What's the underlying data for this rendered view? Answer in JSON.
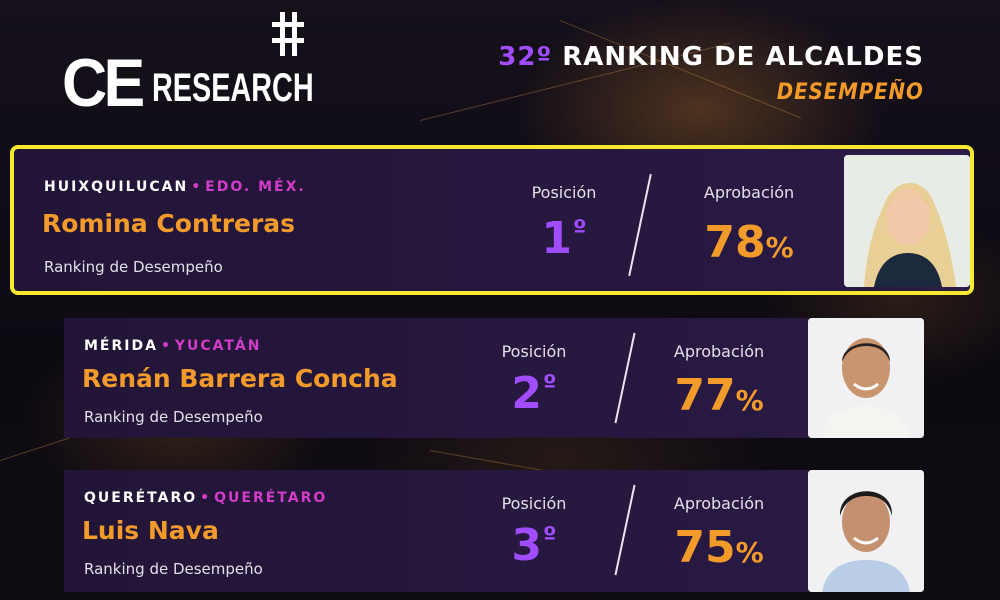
{
  "brand": {
    "logo_ce": "CE",
    "logo_research": "RESEARCH"
  },
  "header": {
    "number": "32º",
    "title": "RANKING DE ALCALDES",
    "subtitle": "DESEMPEÑO"
  },
  "labels": {
    "position": "Posición",
    "approval": "Aprobación",
    "ranking": "Ranking de Desempeño"
  },
  "entries": [
    {
      "city": "HUIXQUILUCAN",
      "state": "EDO. MÉX.",
      "name": "Romina Contreras",
      "position": "1",
      "position_suffix": "º",
      "approval": "78",
      "approval_unit": "%",
      "highlighted": true
    },
    {
      "city": "MÉRIDA",
      "state": "YUCATÁN",
      "name": "Renán Barrera Concha",
      "position": "2",
      "position_suffix": "º",
      "approval": "77",
      "approval_unit": "%",
      "highlighted": false
    },
    {
      "city": "QUERÉTARO",
      "state": "QUERÉTARO",
      "name": "Luis Nava",
      "position": "3",
      "position_suffix": "º",
      "approval": "75",
      "approval_unit": "%",
      "highlighted": false
    }
  ],
  "colors": {
    "accent_orange": "#f29a2a",
    "accent_purple": "#a24cff",
    "accent_pink": "#d23cc8",
    "highlight_border": "#f7e92e",
    "card_bg": "#24173b"
  }
}
